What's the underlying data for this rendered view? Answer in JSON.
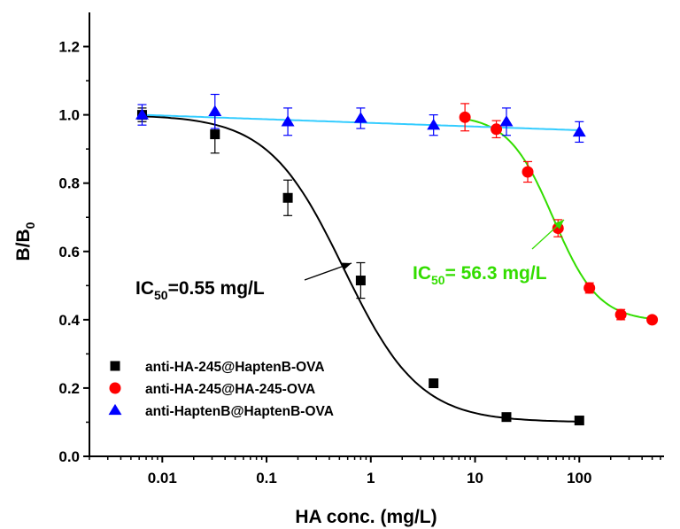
{
  "chart_data": {
    "type": "scatter",
    "xscale": "log",
    "xlabel": "HA conc. (mg/L)",
    "ylabel": {
      "main": "B/B",
      "sub": "0"
    },
    "xlim": [
      0.002,
      650
    ],
    "ylim": [
      0,
      1.3
    ],
    "x_ticks": [
      {
        "value": 0.01,
        "label": "0.01"
      },
      {
        "value": 0.1,
        "label": "0.1"
      },
      {
        "value": 1,
        "label": "1"
      },
      {
        "value": 10,
        "label": "10"
      },
      {
        "value": 100,
        "label": "100"
      }
    ],
    "y_ticks": [
      {
        "value": 0.0,
        "label": "0.0"
      },
      {
        "value": 0.2,
        "label": "0.2"
      },
      {
        "value": 0.4,
        "label": "0.4"
      },
      {
        "value": 0.6,
        "label": "0.6"
      },
      {
        "value": 0.8,
        "label": "0.8"
      },
      {
        "value": 1.0,
        "label": "1.0"
      },
      {
        "value": 1.2,
        "label": "1.2"
      }
    ],
    "legend_position": "bottom-left",
    "series": [
      {
        "name": "anti-HA-245@HaptenB-OVA",
        "marker": "square",
        "color": "#000000",
        "fit_color": "#000000",
        "x": [
          0.0064,
          0.032,
          0.16,
          0.8,
          4,
          20,
          100
        ],
        "y": [
          1.0,
          0.943,
          0.757,
          0.515,
          0.214,
          0.115,
          0.105
        ],
        "err": [
          0.02,
          0.055,
          0.052,
          0.052,
          0.0,
          0.0,
          0.0
        ],
        "fit": {
          "top": 1.0,
          "bottom": 0.1,
          "ic50": 0.55,
          "hill": 1.2,
          "xmin": 0.0064,
          "xmax": 100
        }
      },
      {
        "name": "anti-HA-245@HA-245-OVA",
        "marker": "circle",
        "color": "#ff0000",
        "fit_color": "#33dd00",
        "x": [
          8,
          16,
          32,
          62.5,
          125,
          250,
          500
        ],
        "y": [
          0.993,
          0.958,
          0.833,
          0.668,
          0.493,
          0.415,
          0.4
        ],
        "err": [
          0.04,
          0.025,
          0.03,
          0.025,
          0.015,
          0.015,
          0.0
        ],
        "fit": {
          "top": 1.0,
          "bottom": 0.395,
          "ic50": 56.3,
          "hill": 2.0,
          "xmin": 8,
          "xmax": 500
        }
      },
      {
        "name": "anti-HaptenB@HaptenB-OVA",
        "marker": "triangle",
        "color": "#0000ff",
        "fit_color": "#33ccff",
        "x": [
          0.0064,
          0.032,
          0.16,
          0.8,
          4,
          20,
          100
        ],
        "y": [
          1.0,
          1.01,
          0.98,
          0.99,
          0.97,
          0.98,
          0.95
        ],
        "err": [
          0.03,
          0.05,
          0.04,
          0.03,
          0.03,
          0.04,
          0.03
        ],
        "fit": {
          "linear": true,
          "y0": 1.0,
          "y1": 0.955,
          "xmin": 0.0064,
          "xmax": 100
        }
      }
    ],
    "annotations": [
      {
        "main": "IC",
        "sub": "50",
        "rest": "=0.55 mg/L",
        "color": "#000000"
      },
      {
        "main": "IC",
        "sub": "50",
        "rest": "= 56.3 mg/L",
        "color": "#33dd00"
      }
    ]
  }
}
